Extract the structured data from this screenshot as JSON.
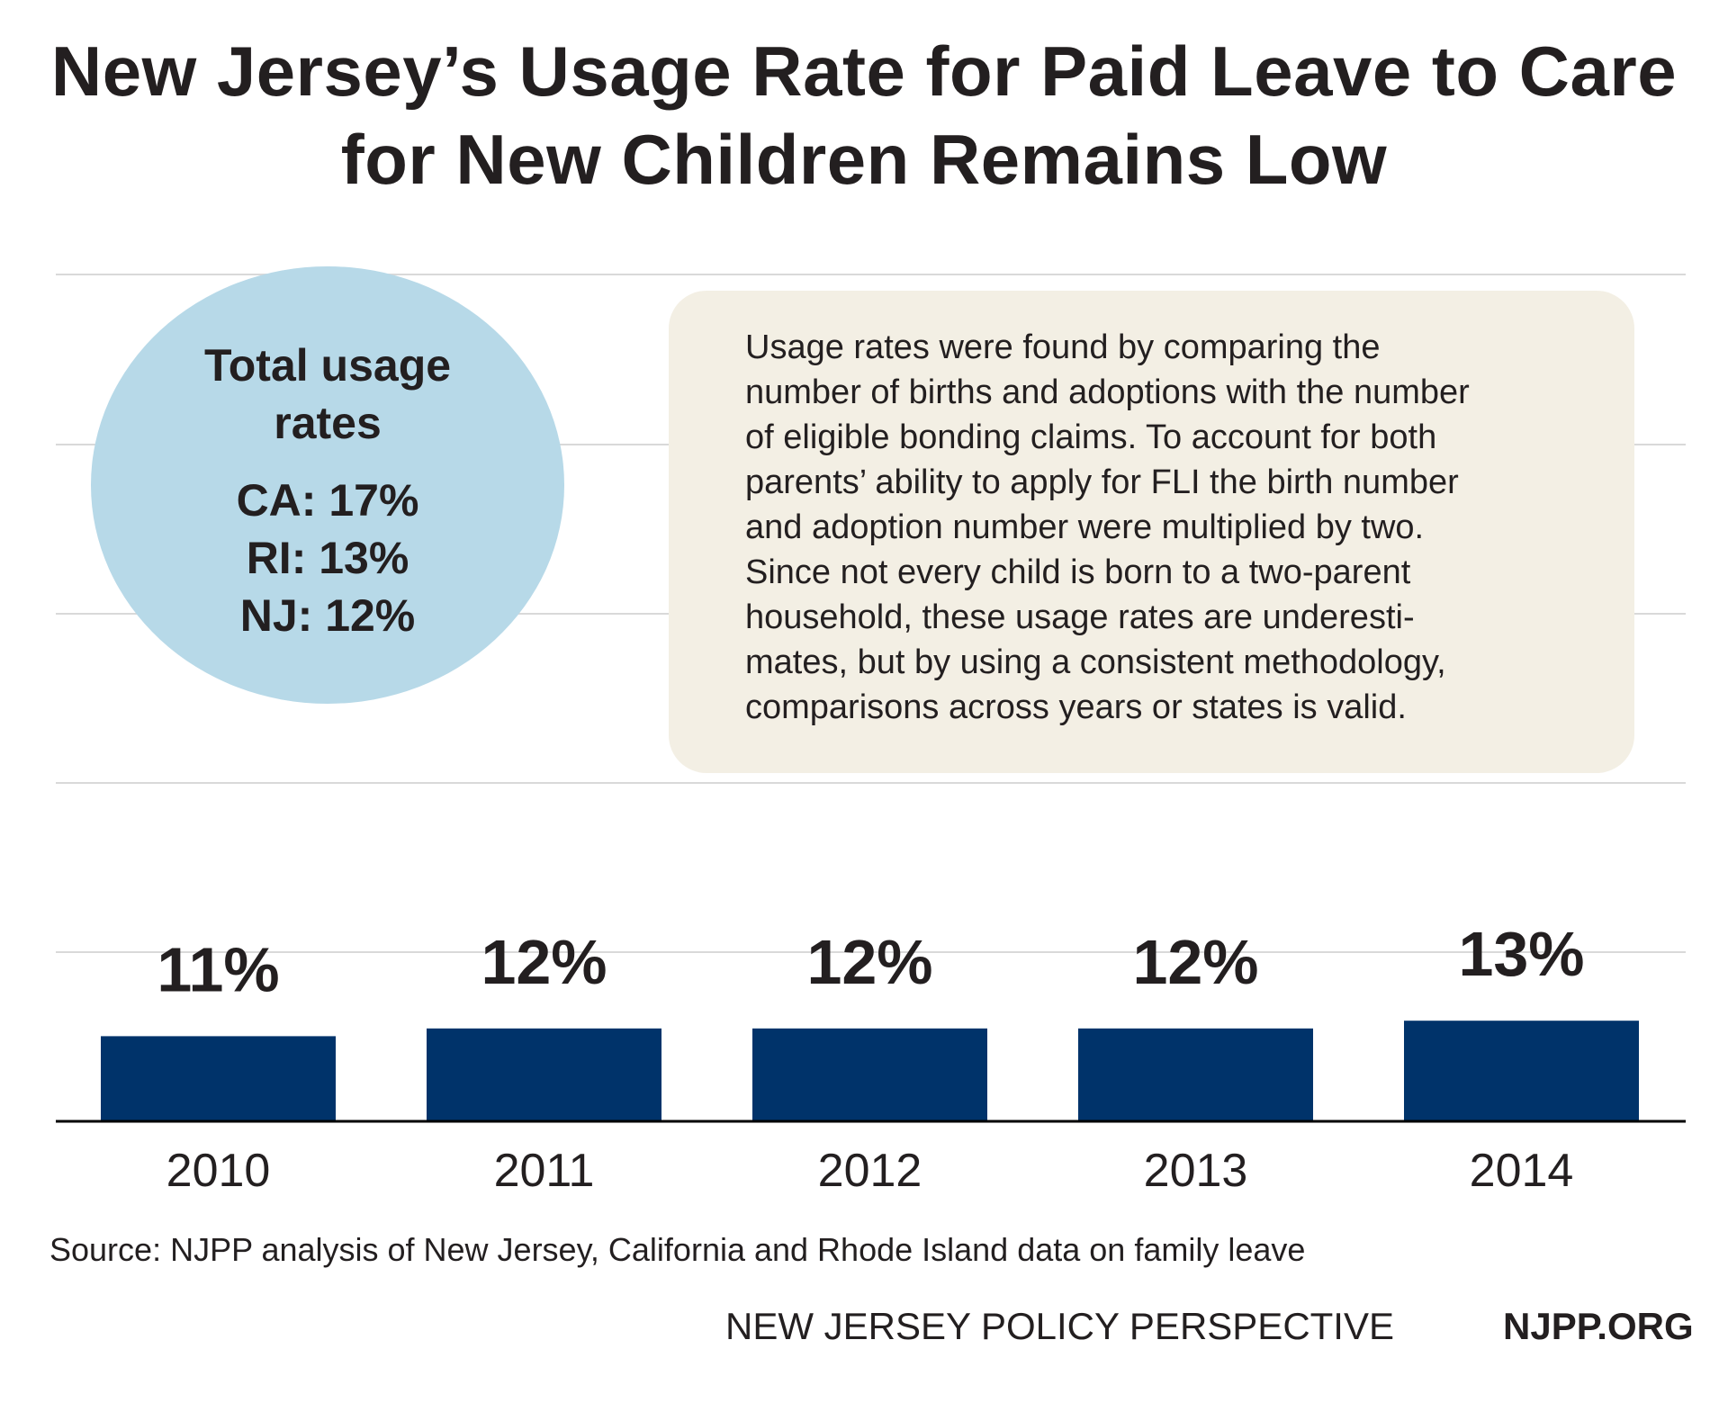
{
  "title_lines": [
    "New Jersey’s Usage Rate for Paid Leave to Care",
    "for New Children Remains Low"
  ],
  "callout": {
    "heading_lines": [
      "Total usage",
      "rates"
    ],
    "rates": [
      "CA: 17%",
      "RI: 13%",
      "NJ: 12%"
    ]
  },
  "note_lines": [
    "Usage rates were found by comparing the",
    "number of births and adoptions with the number",
    "of eligible bonding claims. To account for both",
    "parents’ ability to apply for FLI the birth number",
    "and adoption number were multiplied by two.",
    "Since not every child is born to a two-parent",
    "household, these usage rates are underesti-",
    "mates, but by using a consistent methodology,",
    "comparisons across years or states is valid."
  ],
  "chart_data": {
    "type": "bar",
    "categories": [
      "2010",
      "2011",
      "2012",
      "2013",
      "2014"
    ],
    "values": [
      11,
      12,
      12,
      12,
      13
    ],
    "value_labels": [
      "11%",
      "12%",
      "12%",
      "12%",
      "13%"
    ],
    "ylim": [
      0,
      100
    ],
    "grid": true,
    "bar_color": "#00336a",
    "xlabel": "",
    "ylabel": ""
  },
  "source": "Source: NJPP analysis of New Jersey, California and Rhode Island data on family leave",
  "footer": {
    "org": "NEW JERSEY POLICY PERSPECTIVE",
    "url": "NJPP.ORG"
  }
}
